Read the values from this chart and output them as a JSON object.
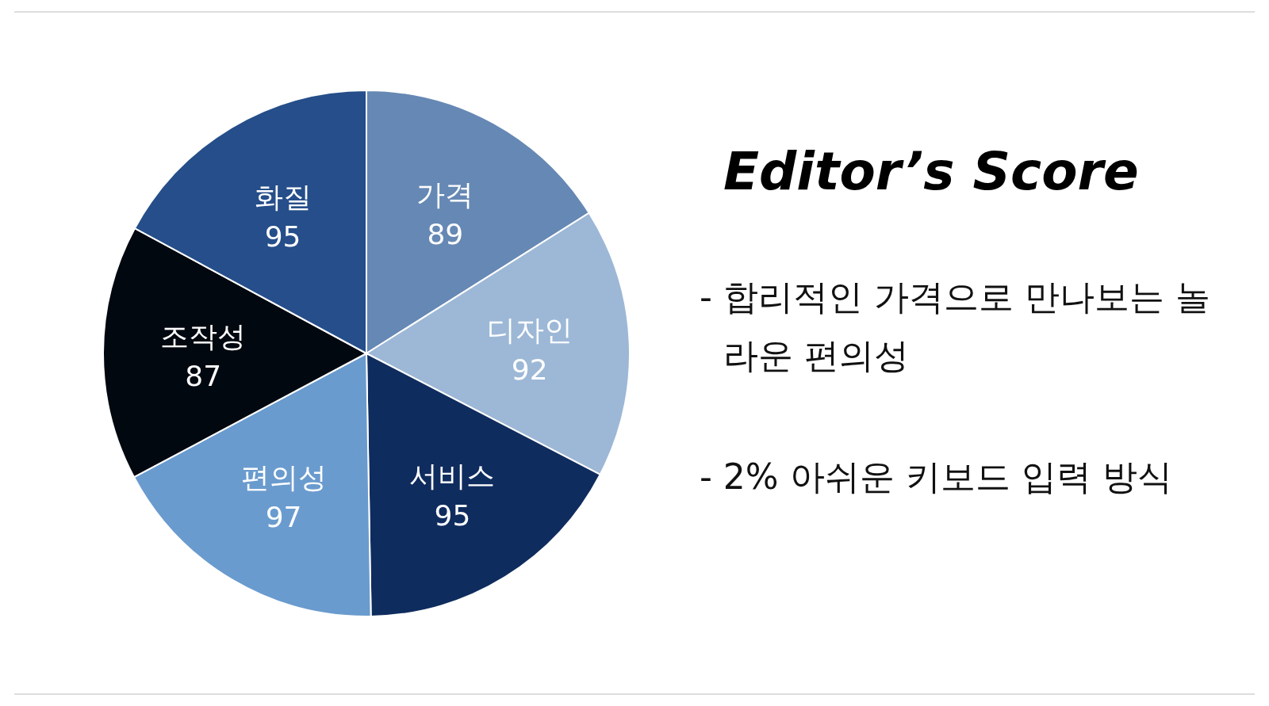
{
  "chart_data": {
    "type": "pie",
    "title": "Editor’s Score",
    "categories": [
      "가격",
      "디자인",
      "서비스",
      "편의성",
      "조작성",
      "화질"
    ],
    "values": [
      89,
      92,
      95,
      97,
      87,
      95
    ],
    "colors": [
      "#6688b4",
      "#9db8d6",
      "#0f2c5e",
      "#6a9bce",
      "#020810",
      "#254e8a"
    ],
    "data_labels": true,
    "annotations": [
      "- 합리적인 가격으로 만나보는 놀라운 편의성",
      "- 2% 아쉬운 키보드 입력 방식"
    ]
  }
}
